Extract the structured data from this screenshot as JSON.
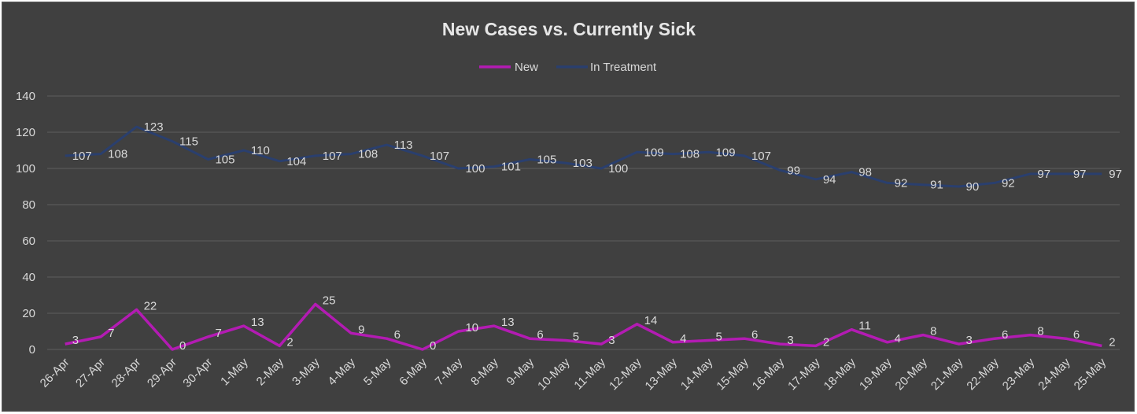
{
  "chart_data": {
    "type": "line",
    "title": "New Cases vs. Currently Sick",
    "xlabel": "",
    "ylabel": "",
    "ylim": [
      0,
      140
    ],
    "yticks": [
      0,
      20,
      40,
      60,
      80,
      100,
      120,
      140
    ],
    "grid": true,
    "legend_position": "top",
    "categories": [
      "26-Apr",
      "27-Apr",
      "28-Apr",
      "29-Apr",
      "30-Apr",
      "1-May",
      "2-May",
      "3-May",
      "4-May",
      "5-May",
      "6-May",
      "7-May",
      "8-May",
      "9-May",
      "10-May",
      "11-May",
      "12-May",
      "13-May",
      "14-May",
      "15-May",
      "16-May",
      "17-May",
      "18-May",
      "19-May",
      "20-May",
      "21-May",
      "22-May",
      "23-May",
      "24-May",
      "25-May"
    ],
    "series": [
      {
        "name": "New",
        "color": "#b31bb3",
        "values": [
          3,
          7,
          22,
          0,
          7,
          13,
          2,
          25,
          9,
          6,
          0,
          10,
          13,
          6,
          5,
          3,
          14,
          4,
          5,
          6,
          3,
          2,
          11,
          4,
          8,
          3,
          6,
          8,
          6,
          2
        ]
      },
      {
        "name": "In Treatment",
        "color": "#2a3f6e",
        "values": [
          107,
          108,
          123,
          115,
          105,
          110,
          104,
          107,
          108,
          113,
          107,
          100,
          101,
          105,
          103,
          100,
          109,
          108,
          109,
          107,
          99,
          94,
          98,
          92,
          91,
          90,
          92,
          97,
          97,
          97
        ]
      }
    ],
    "background_color": "#404040",
    "text_color": "#d9d9d9"
  }
}
